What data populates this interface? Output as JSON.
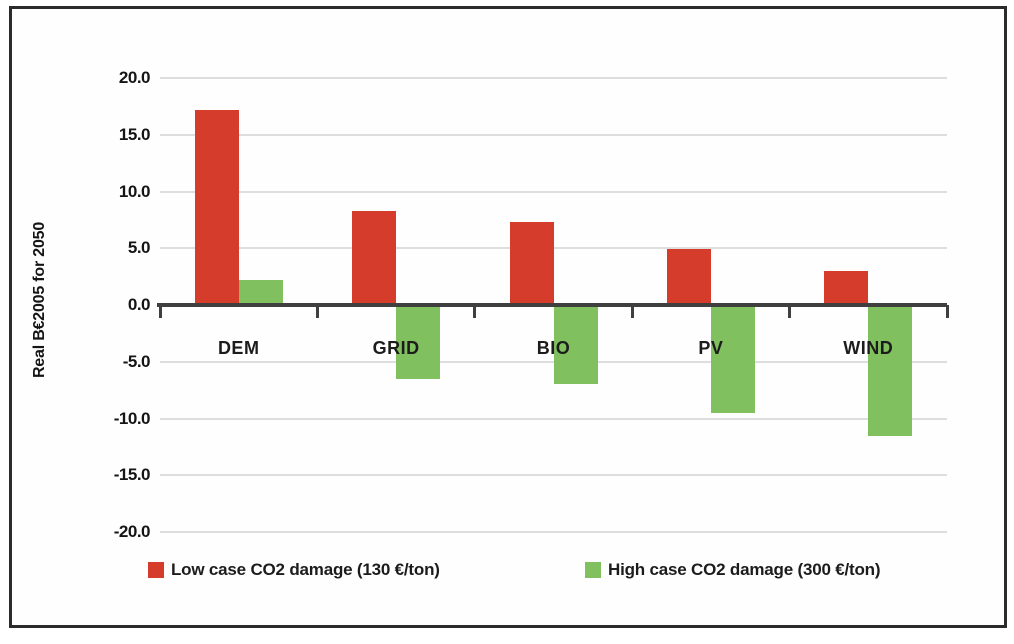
{
  "figure": {
    "background": "#ffffff",
    "border_color": "#2b2b2b",
    "axis_color": "#3f3f3f",
    "gridline_color": "#dedede"
  },
  "chart_data": {
    "type": "bar",
    "categories": [
      "DEM",
      "GRID",
      "BIO",
      "PV",
      "WIND"
    ],
    "series": [
      {
        "name": "Low case CO2 damage (130 €/ton)",
        "color": "#d53c2c",
        "values": [
          17.2,
          8.3,
          7.3,
          4.9,
          3.0
        ]
      },
      {
        "name": "High case CO2 damage (300 €/ton)",
        "color": "#80c05f",
        "values": [
          2.2,
          -6.5,
          -7.0,
          -9.5,
          -11.5
        ]
      }
    ],
    "title": "",
    "xlabel": "",
    "ylabel": "Real B€2005 for 2050",
    "ylim": [
      -20,
      20
    ],
    "ytick_step": 5,
    "ytick_labels": [
      "20.0",
      "15.0",
      "10.0",
      "5.0",
      "0.0",
      "-5.0",
      "-10.0",
      "-15.0",
      "-20.0"
    ],
    "grid": true,
    "legend_position": "bottom"
  }
}
